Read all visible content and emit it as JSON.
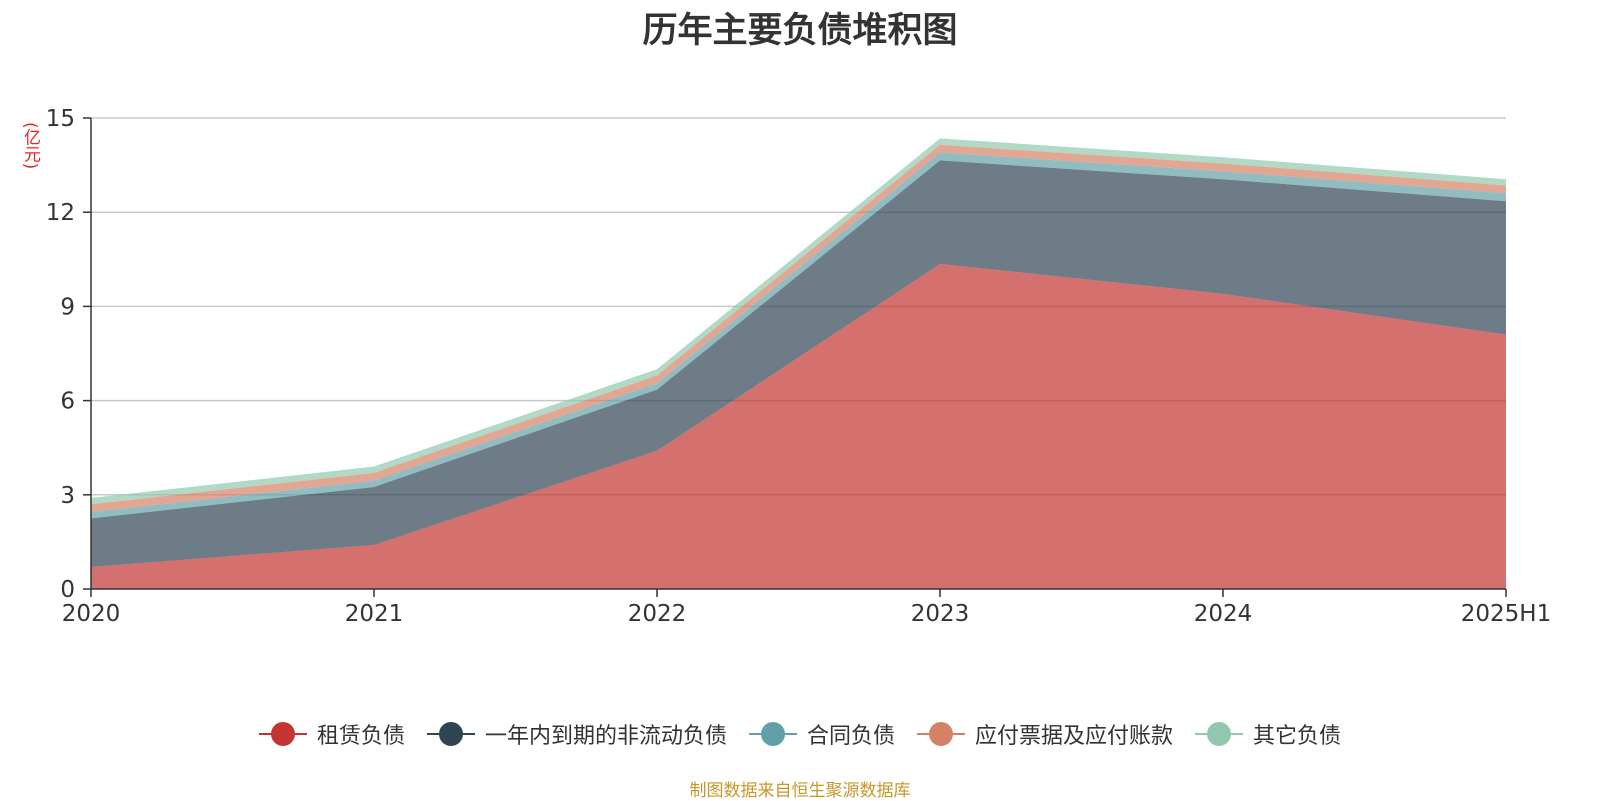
{
  "chart_data": {
    "type": "area",
    "stacked": true,
    "title": "历年主要负债堆积图",
    "unit_label": "(亿元)",
    "categories": [
      "2020",
      "2021",
      "2022",
      "2023",
      "2024",
      "2025H1"
    ],
    "ylim": [
      0,
      15
    ],
    "yticks": [
      "0",
      "3",
      "6",
      "9",
      "12",
      "15"
    ],
    "grid": true,
    "legend_position": "bottom",
    "series": [
      {
        "name": "租赁负债",
        "color": "#c23531",
        "values": [
          0.7,
          1.4,
          4.4,
          10.35,
          9.4,
          8.1
        ]
      },
      {
        "name": "一年内到期的非流动负债",
        "color": "#2f4554",
        "values": [
          1.55,
          1.85,
          1.95,
          3.3,
          3.65,
          4.25
        ]
      },
      {
        "name": "合同负债",
        "color": "#61a0a8",
        "values": [
          0.2,
          0.2,
          0.2,
          0.25,
          0.25,
          0.25
        ]
      },
      {
        "name": "应付票据及应付账款",
        "color": "#d48265",
        "values": [
          0.25,
          0.25,
          0.25,
          0.25,
          0.25,
          0.25
        ]
      },
      {
        "name": "其它负债",
        "color": "#91c7ae",
        "values": [
          0.2,
          0.2,
          0.2,
          0.2,
          0.2,
          0.2
        ]
      }
    ]
  },
  "source_note": "制图数据来自恒生聚源数据库"
}
